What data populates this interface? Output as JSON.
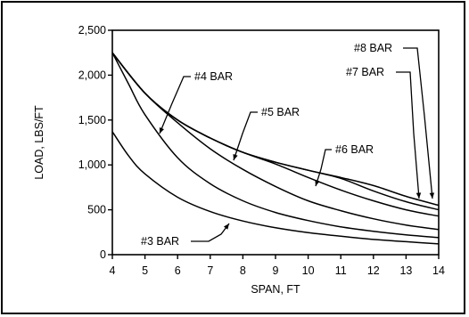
{
  "chart_data": {
    "type": "line",
    "title": "",
    "xlabel": "SPAN, FT",
    "ylabel": "LOAD, LBS/FT",
    "xlim": [
      4,
      14
    ],
    "ylim": [
      0,
      2500
    ],
    "xticks": [
      "4",
      "5",
      "6",
      "7",
      "8",
      "9",
      "10",
      "11",
      "12",
      "13",
      "14"
    ],
    "yticks": [
      "0",
      "500",
      "1,000",
      "1,500",
      "2,000",
      "2,500"
    ],
    "grid": false,
    "series": [
      {
        "name": "#3 BAR",
        "x": [
          4,
          4.5,
          5,
          6,
          7,
          8,
          9,
          10,
          11,
          12,
          13,
          14
        ],
        "y": [
          1370,
          1100,
          900,
          640,
          480,
          375,
          300,
          245,
          205,
          170,
          145,
          120
        ]
      },
      {
        "name": "#4 BAR",
        "x": [
          4,
          4.5,
          5,
          6,
          7,
          8,
          9,
          10,
          11,
          12,
          13,
          14
        ],
        "y": [
          2250,
          1900,
          1560,
          1080,
          790,
          600,
          470,
          380,
          310,
          260,
          220,
          190
        ]
      },
      {
        "name": "#5 BAR",
        "x": [
          4,
          5,
          6,
          7,
          8,
          9,
          10,
          11,
          12,
          13,
          14
        ],
        "y": [
          2250,
          1800,
          1470,
          1180,
          950,
          760,
          600,
          490,
          400,
          330,
          280
        ]
      },
      {
        "name": "#6 BAR",
        "x": [
          4,
          5,
          6,
          7,
          8,
          9,
          10,
          11,
          12,
          13,
          14
        ],
        "y": [
          2250,
          1800,
          1500,
          1300,
          1140,
          1010,
          860,
          720,
          600,
          500,
          430
        ]
      },
      {
        "name": "#7 BAR",
        "x": [
          4,
          5,
          6,
          7,
          8,
          9,
          10,
          11,
          12,
          13,
          14
        ],
        "y": [
          2250,
          1800,
          1500,
          1300,
          1140,
          1030,
          940,
          850,
          710,
          590,
          500
        ]
      },
      {
        "name": "#8 BAR",
        "x": [
          4,
          5,
          6,
          7,
          8,
          9,
          10,
          11,
          12,
          13,
          14
        ],
        "y": [
          2250,
          1800,
          1500,
          1300,
          1140,
          1030,
          940,
          860,
          770,
          650,
          550
        ]
      }
    ]
  }
}
